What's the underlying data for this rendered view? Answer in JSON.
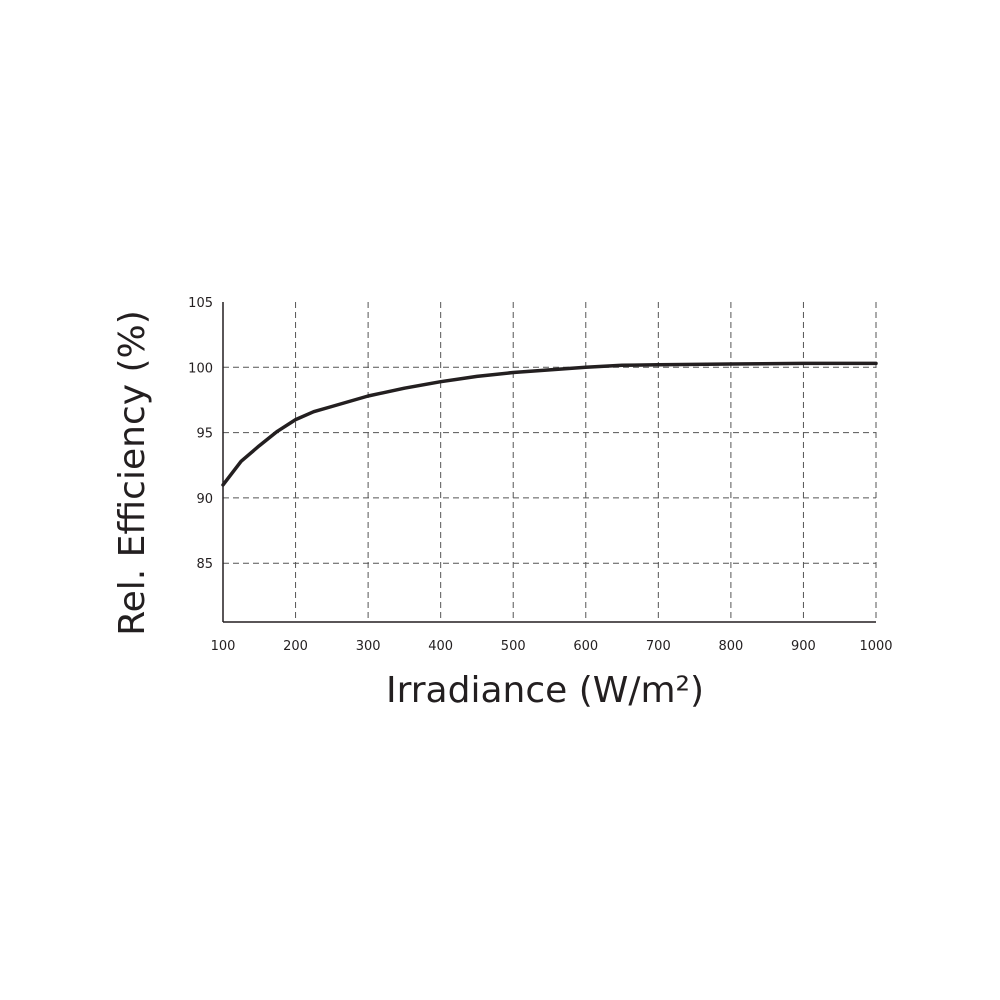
{
  "chart_data": {
    "type": "line",
    "xlabel": "Irradiance (W/m²)",
    "ylabel": "Rel. Efficiency (%)",
    "xlim": [
      100,
      1000
    ],
    "ylim": [
      80.5,
      105
    ],
    "x_ticks": [
      100,
      200,
      300,
      400,
      500,
      600,
      700,
      800,
      900,
      1000
    ],
    "y_ticks": [
      85,
      90,
      95,
      100,
      105
    ],
    "grid": true,
    "series": [
      {
        "x": [
          100,
          125,
          150,
          175,
          200,
          225,
          250,
          300,
          350,
          400,
          450,
          500,
          550,
          600,
          650,
          700,
          800,
          900,
          1000
        ],
        "values": [
          91.0,
          92.8,
          94.0,
          95.1,
          96.0,
          96.6,
          97.0,
          97.8,
          98.4,
          98.9,
          99.3,
          99.6,
          99.8,
          100.0,
          100.15,
          100.2,
          100.25,
          100.3,
          100.3
        ]
      }
    ]
  }
}
